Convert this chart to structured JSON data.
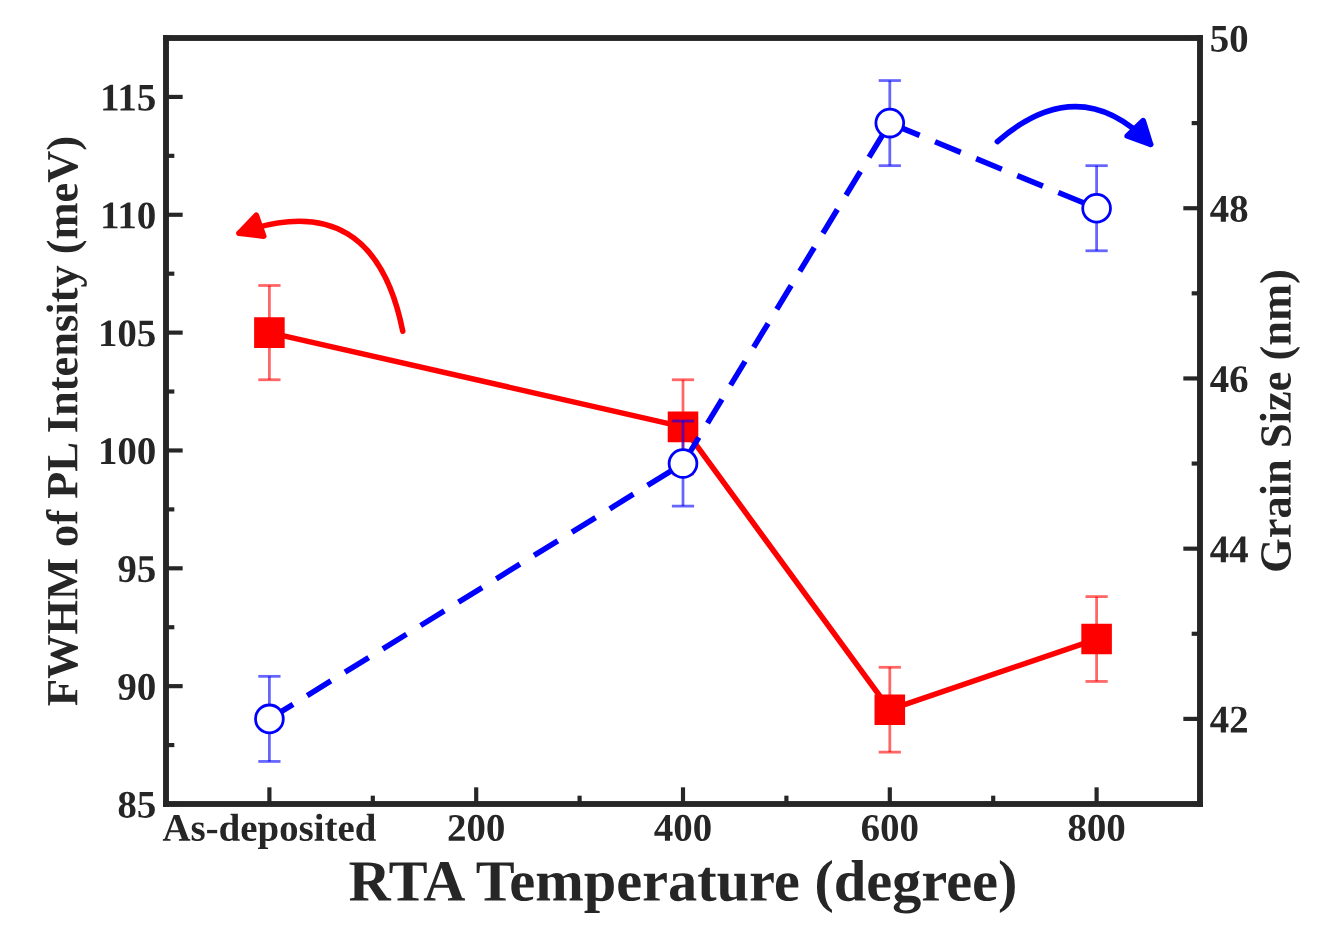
{
  "chart_data": {
    "type": "line",
    "xlabel": "RTA Temperature (degree)",
    "ylabel": "FWHM of PL Intensity (meV)",
    "y2label": "Grain Size (nm)",
    "x": [
      0,
      400,
      600,
      800
    ],
    "series": [
      {
        "color": "#ff0000",
        "values": [
          105,
          101,
          89,
          92
        ],
        "errors": [
          2,
          2,
          1.8,
          1.8
        ],
        "marker": "square",
        "line_style": "solid"
      },
      {
        "axis": "y2",
        "color": "#0000ff",
        "values": [
          42,
          45,
          49,
          48
        ],
        "errors": [
          0.5,
          0.5,
          0.5,
          0.5
        ],
        "marker": "circle",
        "line_style": "dashed"
      }
    ],
    "xlim": [
      -100,
      900
    ],
    "xticks": [
      {
        "value": 0,
        "label": "As-deposited"
      },
      200,
      400,
      600,
      800
    ],
    "ylim": [
      85,
      117.5
    ],
    "yticks": [
      85,
      90,
      95,
      100,
      105,
      110,
      115
    ],
    "y2lim": [
      41,
      50
    ],
    "y2ticks": [
      42,
      44,
      46,
      48,
      50
    ],
    "grid": false,
    "legend": false
  }
}
